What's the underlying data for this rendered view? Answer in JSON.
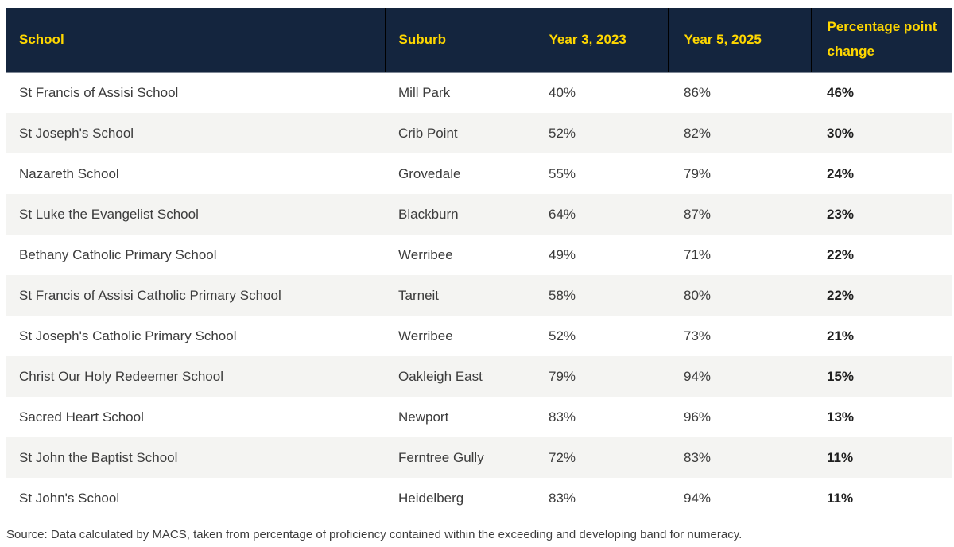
{
  "chart_data": {
    "type": "table",
    "columns": [
      "School",
      "Suburb",
      "Year 3, 2023",
      "Year 5, 2025",
      "Percentage point change"
    ],
    "rows": [
      [
        "St Francis of Assisi School",
        "Mill Park",
        "40%",
        "86%",
        "46%"
      ],
      [
        "St Joseph's School",
        "Crib Point",
        "52%",
        "82%",
        "30%"
      ],
      [
        "Nazareth School",
        "Grovedale",
        "55%",
        "79%",
        "24%"
      ],
      [
        "St Luke the Evangelist School",
        "Blackburn",
        "64%",
        "87%",
        "23%"
      ],
      [
        "Bethany Catholic Primary School",
        "Werribee",
        "49%",
        "71%",
        "22%"
      ],
      [
        "St Francis of Assisi Catholic Primary School",
        "Tarneit",
        "58%",
        "80%",
        "22%"
      ],
      [
        "St Joseph's Catholic Primary School",
        "Werribee",
        "52%",
        "73%",
        "21%"
      ],
      [
        "Christ Our Holy Redeemer School",
        "Oakleigh East",
        "79%",
        "94%",
        "15%"
      ],
      [
        "Sacred Heart School",
        "Newport",
        "83%",
        "96%",
        "13%"
      ],
      [
        "St John the Baptist School",
        "Ferntree Gully",
        "72%",
        "83%",
        "11%"
      ],
      [
        "St John's School",
        "Heidelberg",
        "83%",
        "94%",
        "11%"
      ]
    ],
    "legend_position": "none",
    "grid": "row-stripes",
    "header_style": {
      "background": "#14253e",
      "text_color": "#ffd700"
    },
    "stripe_color": "#f4f4f2"
  },
  "footer": {
    "source_note": "Source: Data calculated by MACS, taken from percentage of proficiency contained within the exceeding and developing band for numeracy."
  },
  "colors": {
    "header_background": "#14253e",
    "header_text": "#ffd700",
    "header_divider": "#000000",
    "row_stripe": "#f4f4f2",
    "body_text": "#3c3c3c",
    "change_text": "#1f1f1f"
  }
}
